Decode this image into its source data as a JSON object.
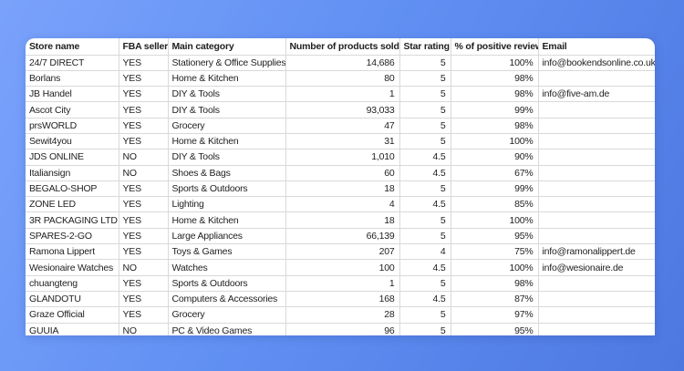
{
  "background": {
    "gradient_start": "#7aa2fb",
    "gradient_end": "#4d78e0"
  },
  "sheet": {
    "background": "#ffffff",
    "gridline_color": "#d9d9d9"
  },
  "table": {
    "columns": [
      {
        "key": "store",
        "label": "Store name",
        "align": "left"
      },
      {
        "key": "fba",
        "label": "FBA seller",
        "align": "left"
      },
      {
        "key": "category",
        "label": "Main category",
        "align": "left"
      },
      {
        "key": "products",
        "label": "Number of products sold",
        "align": "right"
      },
      {
        "key": "rating",
        "label": "Star rating",
        "align": "right"
      },
      {
        "key": "reviews",
        "label": "% of positive reviews",
        "align": "right"
      },
      {
        "key": "email",
        "label": "Email",
        "align": "left"
      }
    ],
    "rows": [
      [
        "24/7 DIRECT",
        "YES",
        "Stationery & Office Supplies",
        "14,686",
        "5",
        "100%",
        "info@bookendsonline.co.uk"
      ],
      [
        "Borlans",
        "YES",
        "Home & Kitchen",
        "80",
        "5",
        "98%",
        ""
      ],
      [
        "JB Handel",
        "YES",
        "DIY & Tools",
        "1",
        "5",
        "98%",
        "info@five-am.de"
      ],
      [
        "Ascot City",
        "YES",
        "DIY & Tools",
        "93,033",
        "5",
        "99%",
        ""
      ],
      [
        "prsWORLD",
        "YES",
        "Grocery",
        "47",
        "5",
        "98%",
        ""
      ],
      [
        "Sewit4you",
        "YES",
        "Home & Kitchen",
        "31",
        "5",
        "100%",
        ""
      ],
      [
        "JDS ONLINE",
        "NO",
        "DIY & Tools",
        "1,010",
        "4.5",
        "90%",
        ""
      ],
      [
        "Italiansign",
        "NO",
        "Shoes & Bags",
        "60",
        "4.5",
        "67%",
        ""
      ],
      [
        "BEGALO-SHOP",
        "YES",
        "Sports & Outdoors",
        "18",
        "5",
        "99%",
        ""
      ],
      [
        "ZONE LED",
        "YES",
        "Lighting",
        "4",
        "4.5",
        "85%",
        ""
      ],
      [
        "3R PACKAGING LTD",
        "YES",
        "Home & Kitchen",
        "18",
        "5",
        "100%",
        ""
      ],
      [
        "SPARES-2-GO",
        "YES",
        "Large Appliances",
        "66,139",
        "5",
        "95%",
        ""
      ],
      [
        "Ramona Lippert",
        "YES",
        "Toys & Games",
        "207",
        "4",
        "75%",
        "info@ramonalippert.de"
      ],
      [
        "Wesionaire Watches",
        "NO",
        "Watches",
        "100",
        "4.5",
        "100%",
        "info@wesionaire.de"
      ],
      [
        "chuangteng",
        "YES",
        "Sports & Outdoors",
        "1",
        "5",
        "98%",
        ""
      ],
      [
        "GLANDOTU",
        "YES",
        "Computers & Accessories",
        "168",
        "4.5",
        "87%",
        ""
      ],
      [
        "Graze Official",
        "YES",
        "Grocery",
        "28",
        "5",
        "97%",
        ""
      ],
      [
        "GUUIA",
        "NO",
        "PC & Video Games",
        "96",
        "5",
        "95%",
        ""
      ]
    ]
  }
}
